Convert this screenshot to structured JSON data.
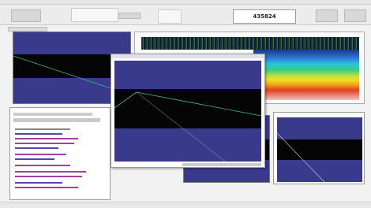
{
  "header": {
    "counter": "435824"
  }
}
